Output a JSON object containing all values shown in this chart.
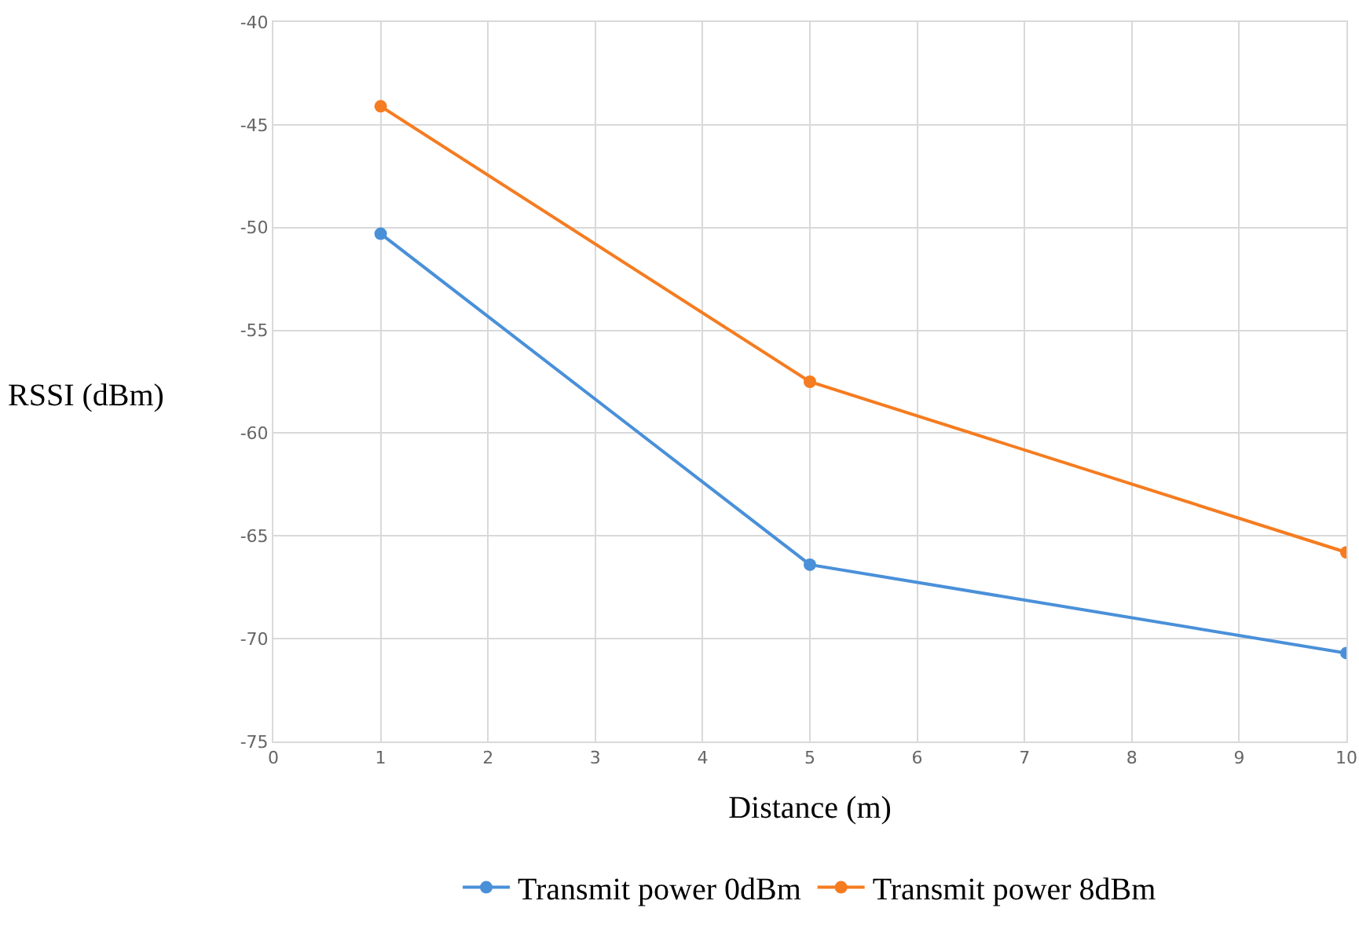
{
  "chart_data": {
    "type": "line",
    "xlabel": "Distance (m)",
    "ylabel": "RSSI (dBm)",
    "x": [
      1,
      5,
      10
    ],
    "series": [
      {
        "name": "Transmit power 0dBm",
        "color": "#4a90d9",
        "values": [
          -50.3,
          -66.4,
          -70.7
        ]
      },
      {
        "name": "Transmit power 8dBm",
        "color": "#f57c20",
        "values": [
          -44.1,
          -57.5,
          -65.8
        ]
      }
    ],
    "xlim": [
      0,
      10
    ],
    "xticks": [
      0,
      1,
      2,
      3,
      4,
      5,
      6,
      7,
      8,
      9,
      10
    ],
    "ylim": [
      -75,
      -40
    ],
    "yticks": [
      -75,
      -70,
      -65,
      -60,
      -55,
      -50,
      -45,
      -40
    ],
    "grid": true,
    "legend": "bottom",
    "marker": "circle",
    "line_style": "solid"
  }
}
